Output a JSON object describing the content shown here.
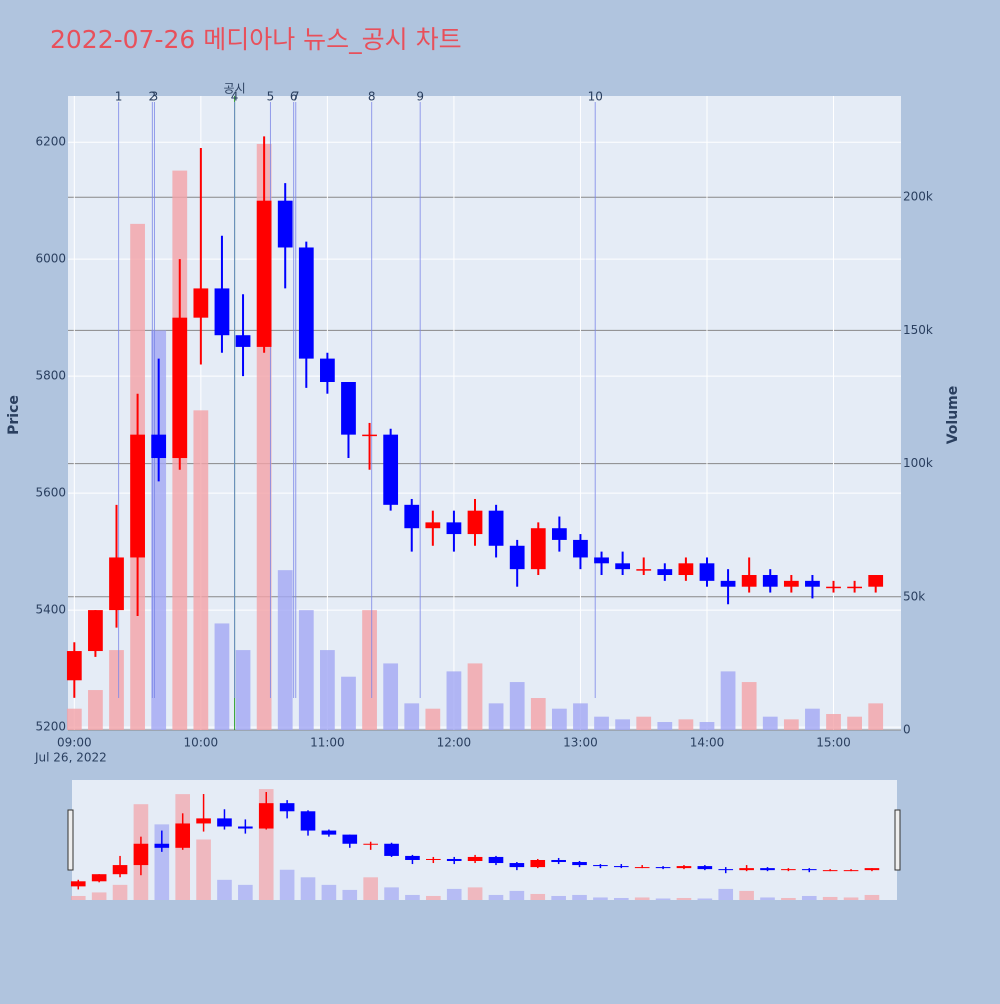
{
  "chart_data": {
    "type": "candlestick",
    "title": "2022-07-26 메디아나 뉴스_공시 차트",
    "y_label": "Price",
    "y2_label": "Volume",
    "x_date_label": "Jul 26, 2022",
    "up_color": "#ff0000",
    "down_color": "#0000ff",
    "volume_up_color": "#f4a3a8",
    "volume_down_color": "#a3a8f4",
    "event_color": "#2ca02c",
    "x": [
      "09:00",
      "09:10",
      "09:20",
      "09:30",
      "09:40",
      "09:50",
      "10:00",
      "10:10",
      "10:20",
      "10:30",
      "10:40",
      "10:50",
      "11:00",
      "11:10",
      "11:20",
      "11:30",
      "11:40",
      "11:50",
      "12:00",
      "12:10",
      "12:20",
      "12:30",
      "12:40",
      "12:50",
      "13:00",
      "13:10",
      "13:20",
      "13:30",
      "13:40",
      "13:50",
      "14:00",
      "14:10",
      "14:20",
      "14:30",
      "14:40",
      "14:50",
      "15:00",
      "15:10",
      "15:20"
    ],
    "open": [
      5280,
      5330,
      5400,
      5490,
      5700,
      5660,
      5900,
      5950,
      5870,
      5850,
      6100,
      6020,
      5830,
      5790,
      5700,
      5700,
      5580,
      5540,
      5550,
      5530,
      5570,
      5510,
      5470,
      5540,
      5520,
      5490,
      5480,
      5470,
      5470,
      5460,
      5480,
      5450,
      5440,
      5460,
      5440,
      5450,
      5440,
      5440,
      5440
    ],
    "high": [
      5345,
      5400,
      5580,
      5770,
      5830,
      6000,
      6190,
      6040,
      5940,
      6210,
      6130,
      6030,
      5840,
      5790,
      5720,
      5710,
      5590,
      5570,
      5570,
      5590,
      5580,
      5520,
      5550,
      5560,
      5530,
      5500,
      5500,
      5490,
      5480,
      5490,
      5490,
      5470,
      5490,
      5470,
      5460,
      5460,
      5450,
      5450,
      5460
    ],
    "low": [
      5250,
      5320,
      5370,
      5390,
      5620,
      5640,
      5820,
      5840,
      5800,
      5840,
      5950,
      5780,
      5770,
      5660,
      5640,
      5570,
      5500,
      5510,
      5500,
      5510,
      5490,
      5440,
      5460,
      5500,
      5470,
      5460,
      5460,
      5460,
      5450,
      5450,
      5440,
      5410,
      5430,
      5430,
      5430,
      5420,
      5430,
      5430,
      5430
    ],
    "close": [
      5330,
      5400,
      5490,
      5700,
      5660,
      5900,
      5950,
      5870,
      5850,
      6100,
      6020,
      5830,
      5790,
      5700,
      5700,
      5580,
      5540,
      5550,
      5530,
      5570,
      5510,
      5470,
      5540,
      5520,
      5490,
      5480,
      5470,
      5470,
      5460,
      5480,
      5450,
      5440,
      5460,
      5440,
      5450,
      5440,
      5440,
      5440,
      5460
    ],
    "volume": [
      8000,
      15000,
      30000,
      190000,
      150000,
      210000,
      120000,
      40000,
      30000,
      220000,
      60000,
      45000,
      30000,
      20000,
      45000,
      25000,
      10000,
      8000,
      22000,
      25000,
      10000,
      18000,
      12000,
      8000,
      10000,
      5000,
      4000,
      5000,
      3000,
      4000,
      3000,
      22000,
      18000,
      5000,
      4000,
      8000,
      6000,
      5000,
      10000
    ],
    "xlim": [
      "08:57",
      "15:32"
    ],
    "xticks": [
      "09:00",
      "10:00",
      "11:00",
      "12:00",
      "13:00",
      "14:00",
      "15:00"
    ],
    "ylim": [
      5195,
      6279
    ],
    "yticks": [
      5200,
      5400,
      5600,
      5800,
      6000,
      6200
    ],
    "y2lim": [
      0,
      238000
    ],
    "y2ticks": [
      0,
      {
        "value": 50000,
        "label": "50k"
      },
      {
        "value": 100000,
        "label": "100k"
      },
      {
        "value": 150000,
        "label": "150k"
      },
      {
        "value": 200000,
        "label": "200k"
      }
    ],
    "event": {
      "label": "공시",
      "x": "10:16"
    },
    "annotations": [
      {
        "label": "1",
        "x": "09:21"
      },
      {
        "label": "2",
        "x": "09:37"
      },
      {
        "label": "3",
        "x": "09:38"
      },
      {
        "label": "4",
        "x": "10:16"
      },
      {
        "label": "5",
        "x": "10:33"
      },
      {
        "label": "6",
        "x": "10:44"
      },
      {
        "label": "7",
        "x": "10:45"
      },
      {
        "label": "8",
        "x": "11:21"
      },
      {
        "label": "9",
        "x": "11:44"
      },
      {
        "label": "10",
        "x": "13:07"
      }
    ]
  }
}
